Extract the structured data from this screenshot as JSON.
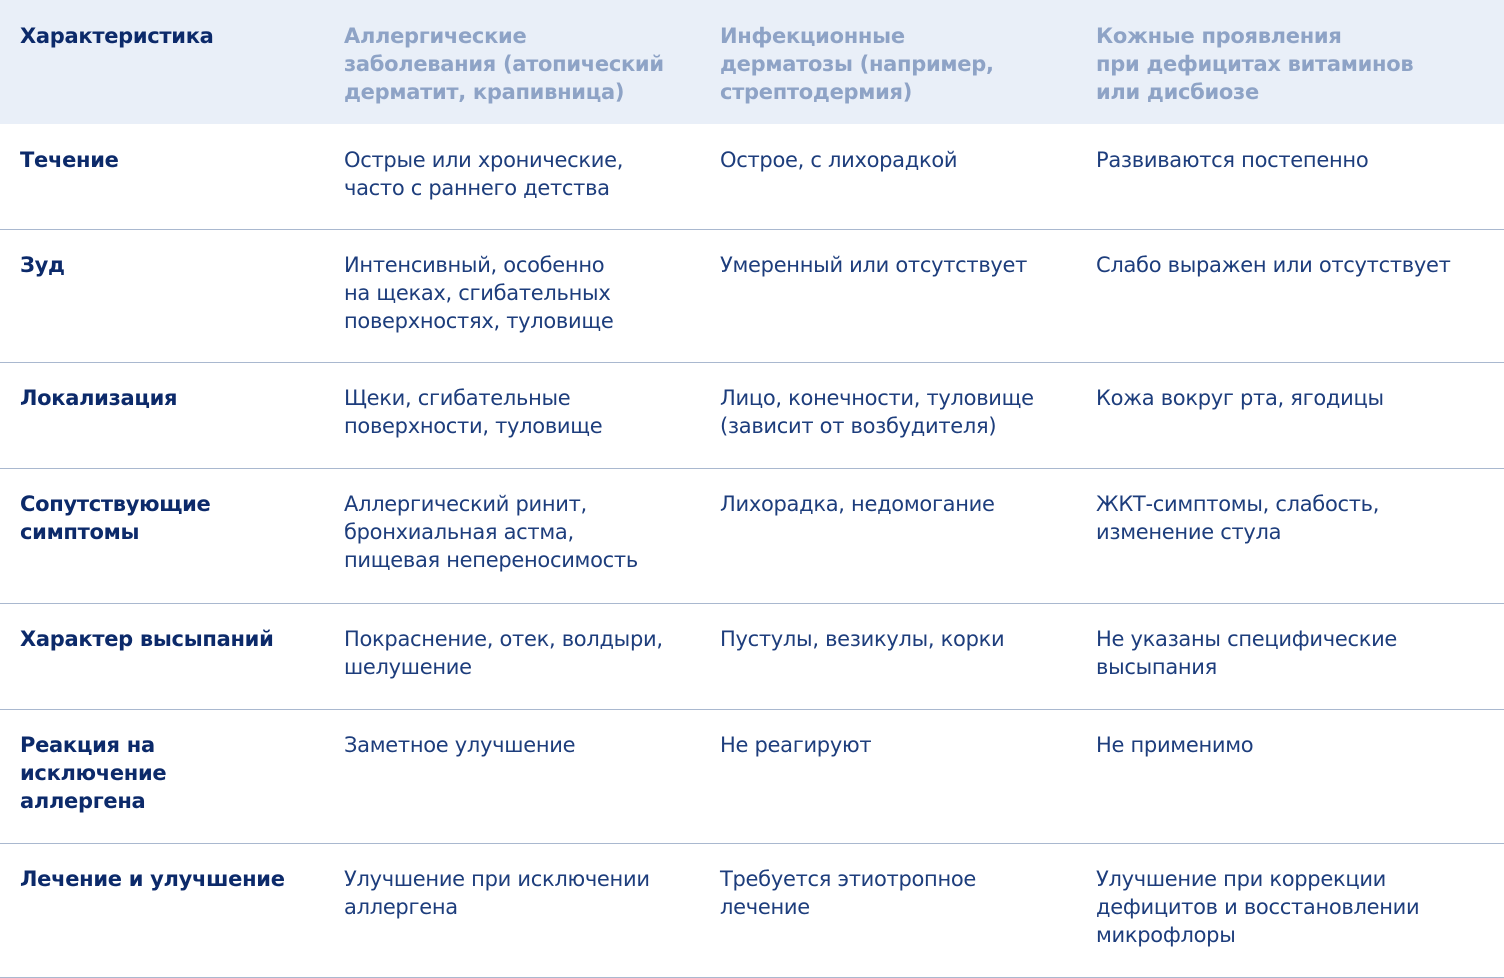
{
  "table": {
    "header": [
      [
        "Характеристика"
      ],
      [
        "Аллергические",
        "заболевания (атопический",
        "дерматит, крапивница)"
      ],
      [
        "Инфекционные",
        "дерматозы (например,",
        "стрептодермия)"
      ],
      [
        "Кожные проявления",
        "при дефицитах витаминов",
        "или дисбиозе"
      ]
    ],
    "rows": [
      [
        [
          "Течение"
        ],
        [
          "Острые или хронические,",
          "часто с раннего детства"
        ],
        [
          "Острое, с лихорадкой"
        ],
        [
          "Развиваются постепенно"
        ]
      ],
      [
        [
          "Зуд"
        ],
        [
          "Интенсивный, особенно",
          "на щеках, сгибательных",
          "поверхностях, туловище"
        ],
        [
          "Умеренный или отсутствует"
        ],
        [
          "Слабо выражен или отсутствует"
        ]
      ],
      [
        [
          "Локализация"
        ],
        [
          "Щеки, сгибательные",
          "поверхности, туловище"
        ],
        [
          "Лицо, конечности, туловище",
          "(зависит от возбудителя)"
        ],
        [
          "Кожа вокруг рта, ягодицы"
        ]
      ],
      [
        [
          "Сопутствующие",
          "симптомы"
        ],
        [
          "Аллергический ринит,",
          "бронхиальная астма,",
          "пищевая непереносимость"
        ],
        [
          "Лихорадка, недомогание"
        ],
        [
          "ЖКТ-симптомы, слабость,",
          "изменение стула"
        ]
      ],
      [
        [
          "Характер высыпаний"
        ],
        [
          "Покраснение, отек, волдыри,",
          "шелушение"
        ],
        [
          "Пустулы, везикулы, корки"
        ],
        [
          "Не указаны специфические",
          "высыпания"
        ]
      ],
      [
        [
          "Реакция на",
          "исключение",
          "аллергена"
        ],
        [
          "Заметное улучшение"
        ],
        [
          "Не реагируют"
        ],
        [
          "Не применимо"
        ]
      ],
      [
        [
          "Лечение и улучшение"
        ],
        [
          "Улучшение при исключении",
          "аллергена"
        ],
        [
          "Требуется этиотропное",
          "лечение"
        ],
        [
          "Улучшение при коррекции",
          "дефицитов и восстановлении",
          "микрофлоры"
        ]
      ]
    ]
  }
}
